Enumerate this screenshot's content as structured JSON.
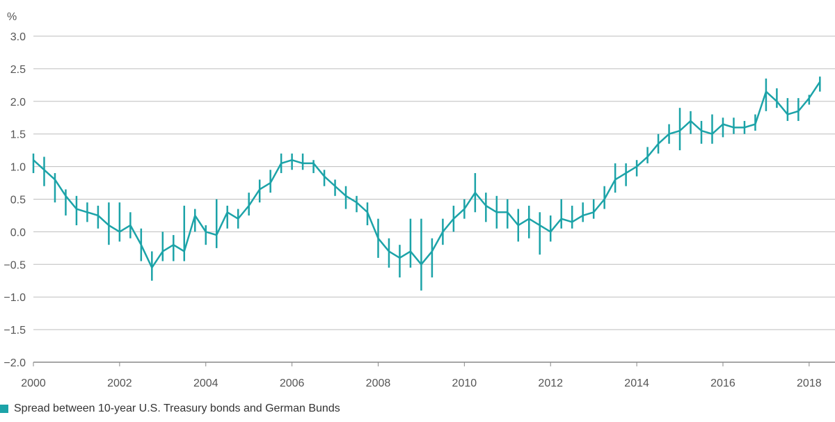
{
  "chart_data": {
    "type": "line",
    "unit_label": "%",
    "ylim": [
      -2.0,
      3.0
    ],
    "xlim": [
      2000,
      2018.6
    ],
    "y_ticks": [
      "3.0",
      "2.5",
      "2.0",
      "1.5",
      "1.0",
      "0.5",
      "0.0",
      "−0.5",
      "−1.0",
      "−1.5",
      "−2.0"
    ],
    "y_tick_values": [
      3.0,
      2.5,
      2.0,
      1.5,
      1.0,
      0.5,
      0.0,
      -0.5,
      -1.0,
      -1.5,
      -2.0
    ],
    "x_ticks": [
      "2000",
      "2002",
      "2004",
      "2006",
      "2008",
      "2010",
      "2012",
      "2014",
      "2016",
      "2018"
    ],
    "x_tick_values": [
      2000,
      2002,
      2004,
      2006,
      2008,
      2010,
      2012,
      2014,
      2016,
      2018
    ],
    "grid": "horizontal",
    "legend_position": "bottom-left",
    "series": [
      {
        "name": "Spread between 10-year U.S. Treasury bonds and German Bunds",
        "color": "#1ca3a8",
        "x": [
          2000.0,
          2000.25,
          2000.5,
          2000.75,
          2001.0,
          2001.25,
          2001.5,
          2001.75,
          2002.0,
          2002.25,
          2002.5,
          2002.75,
          2003.0,
          2003.25,
          2003.5,
          2003.75,
          2004.0,
          2004.25,
          2004.5,
          2004.75,
          2005.0,
          2005.25,
          2005.5,
          2005.75,
          2006.0,
          2006.25,
          2006.5,
          2006.75,
          2007.0,
          2007.25,
          2007.5,
          2007.75,
          2008.0,
          2008.25,
          2008.5,
          2008.75,
          2009.0,
          2009.25,
          2009.5,
          2009.75,
          2010.0,
          2010.25,
          2010.5,
          2010.75,
          2011.0,
          2011.25,
          2011.5,
          2011.75,
          2012.0,
          2012.25,
          2012.5,
          2012.75,
          2013.0,
          2013.25,
          2013.5,
          2013.75,
          2014.0,
          2014.25,
          2014.5,
          2014.75,
          2015.0,
          2015.25,
          2015.5,
          2015.75,
          2016.0,
          2016.25,
          2016.5,
          2016.75,
          2017.0,
          2017.25,
          2017.5,
          2017.75,
          2018.0,
          2018.25
        ],
        "y": [
          1.1,
          0.95,
          0.8,
          0.55,
          0.35,
          0.3,
          0.25,
          0.1,
          0.0,
          0.1,
          -0.2,
          -0.55,
          -0.3,
          -0.2,
          -0.3,
          0.25,
          0.0,
          -0.05,
          0.3,
          0.2,
          0.4,
          0.65,
          0.75,
          1.05,
          1.1,
          1.05,
          1.05,
          0.85,
          0.7,
          0.55,
          0.45,
          0.3,
          -0.1,
          -0.3,
          -0.4,
          -0.3,
          -0.5,
          -0.3,
          0.0,
          0.2,
          0.35,
          0.6,
          0.4,
          0.3,
          0.3,
          0.1,
          0.2,
          0.1,
          0.0,
          0.2,
          0.15,
          0.25,
          0.3,
          0.5,
          0.8,
          0.9,
          1.0,
          1.15,
          1.35,
          1.5,
          1.55,
          1.7,
          1.55,
          1.5,
          1.65,
          1.6,
          1.6,
          1.65,
          2.15,
          2.0,
          1.8,
          1.85,
          2.05,
          2.3
        ],
        "range_low": [
          0.9,
          0.7,
          0.45,
          0.25,
          0.1,
          0.15,
          0.05,
          -0.2,
          -0.15,
          -0.1,
          -0.45,
          -0.75,
          -0.45,
          -0.45,
          -0.45,
          0.0,
          -0.2,
          -0.25,
          0.05,
          0.05,
          0.25,
          0.45,
          0.6,
          0.9,
          0.95,
          0.95,
          0.9,
          0.7,
          0.55,
          0.35,
          0.3,
          0.1,
          -0.4,
          -0.55,
          -0.7,
          -0.55,
          -0.9,
          -0.7,
          -0.2,
          0.0,
          0.2,
          0.3,
          0.15,
          0.05,
          0.05,
          -0.15,
          -0.1,
          -0.35,
          -0.15,
          0.05,
          0.05,
          0.15,
          0.2,
          0.35,
          0.6,
          0.7,
          0.85,
          1.05,
          1.2,
          1.35,
          1.25,
          1.5,
          1.35,
          1.35,
          1.45,
          1.5,
          1.5,
          1.55,
          1.85,
          1.9,
          1.7,
          1.7,
          1.95,
          2.15
        ],
        "range_high": [
          1.2,
          1.15,
          0.9,
          0.65,
          0.55,
          0.45,
          0.4,
          0.45,
          0.45,
          0.3,
          0.05,
          -0.3,
          0.0,
          -0.05,
          0.4,
          0.35,
          0.1,
          0.5,
          0.4,
          0.35,
          0.6,
          0.8,
          0.95,
          1.2,
          1.2,
          1.2,
          1.1,
          0.95,
          0.8,
          0.7,
          0.55,
          0.45,
          0.2,
          -0.1,
          -0.2,
          0.2,
          0.2,
          -0.1,
          0.2,
          0.4,
          0.5,
          0.9,
          0.6,
          0.55,
          0.5,
          0.35,
          0.4,
          0.3,
          0.25,
          0.5,
          0.4,
          0.45,
          0.5,
          0.7,
          1.05,
          1.05,
          1.1,
          1.3,
          1.5,
          1.65,
          1.9,
          1.85,
          1.7,
          1.8,
          1.75,
          1.75,
          1.7,
          1.8,
          2.35,
          2.2,
          2.05,
          2.05,
          2.1,
          2.38
        ]
      }
    ]
  }
}
